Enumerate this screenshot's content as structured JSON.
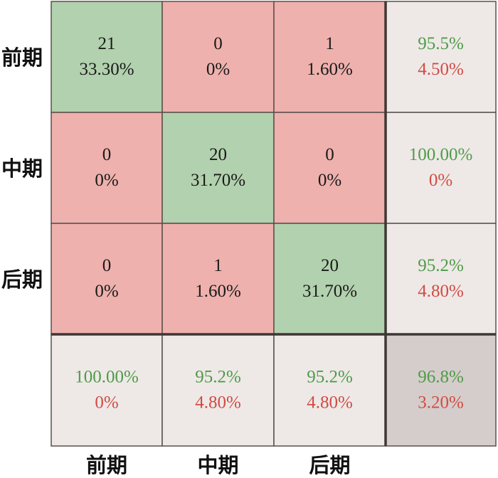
{
  "chart_data": {
    "type": "heatmap",
    "title": "",
    "row_labels": [
      "前期",
      "中期",
      "后期"
    ],
    "col_labels": [
      "前期",
      "中期",
      "后期"
    ],
    "matrix": [
      [
        {
          "count": "21",
          "pct": "33.30%"
        },
        {
          "count": "0",
          "pct": "0%"
        },
        {
          "count": "1",
          "pct": "1.60%"
        }
      ],
      [
        {
          "count": "0",
          "pct": "0%"
        },
        {
          "count": "20",
          "pct": "31.70%"
        },
        {
          "count": "0",
          "pct": "0%"
        }
      ],
      [
        {
          "count": "0",
          "pct": "0%"
        },
        {
          "count": "1",
          "pct": "1.60%"
        },
        {
          "count": "20",
          "pct": "31.70%"
        }
      ]
    ],
    "row_summary": [
      {
        "correct": "95.5%",
        "error": "4.50%"
      },
      {
        "correct": "100.00%",
        "error": "0%"
      },
      {
        "correct": "95.2%",
        "error": "4.80%"
      }
    ],
    "col_summary": [
      {
        "correct": "100.00%",
        "error": "0%"
      },
      {
        "correct": "95.2%",
        "error": "4.80%"
      },
      {
        "correct": "95.2%",
        "error": "4.80%"
      }
    ],
    "overall": {
      "correct": "96.8%",
      "error": "3.20%"
    }
  },
  "colors": {
    "diagonal": "#b2d1ae",
    "off_diagonal": "#eeb1ad",
    "summary": "#eee9e7",
    "overall": "#d5cdcb",
    "correct_text": "#4f9b49",
    "error_text": "#d04c44",
    "cell_text": "#1a1a1a",
    "grid": "#5a4f4c"
  }
}
